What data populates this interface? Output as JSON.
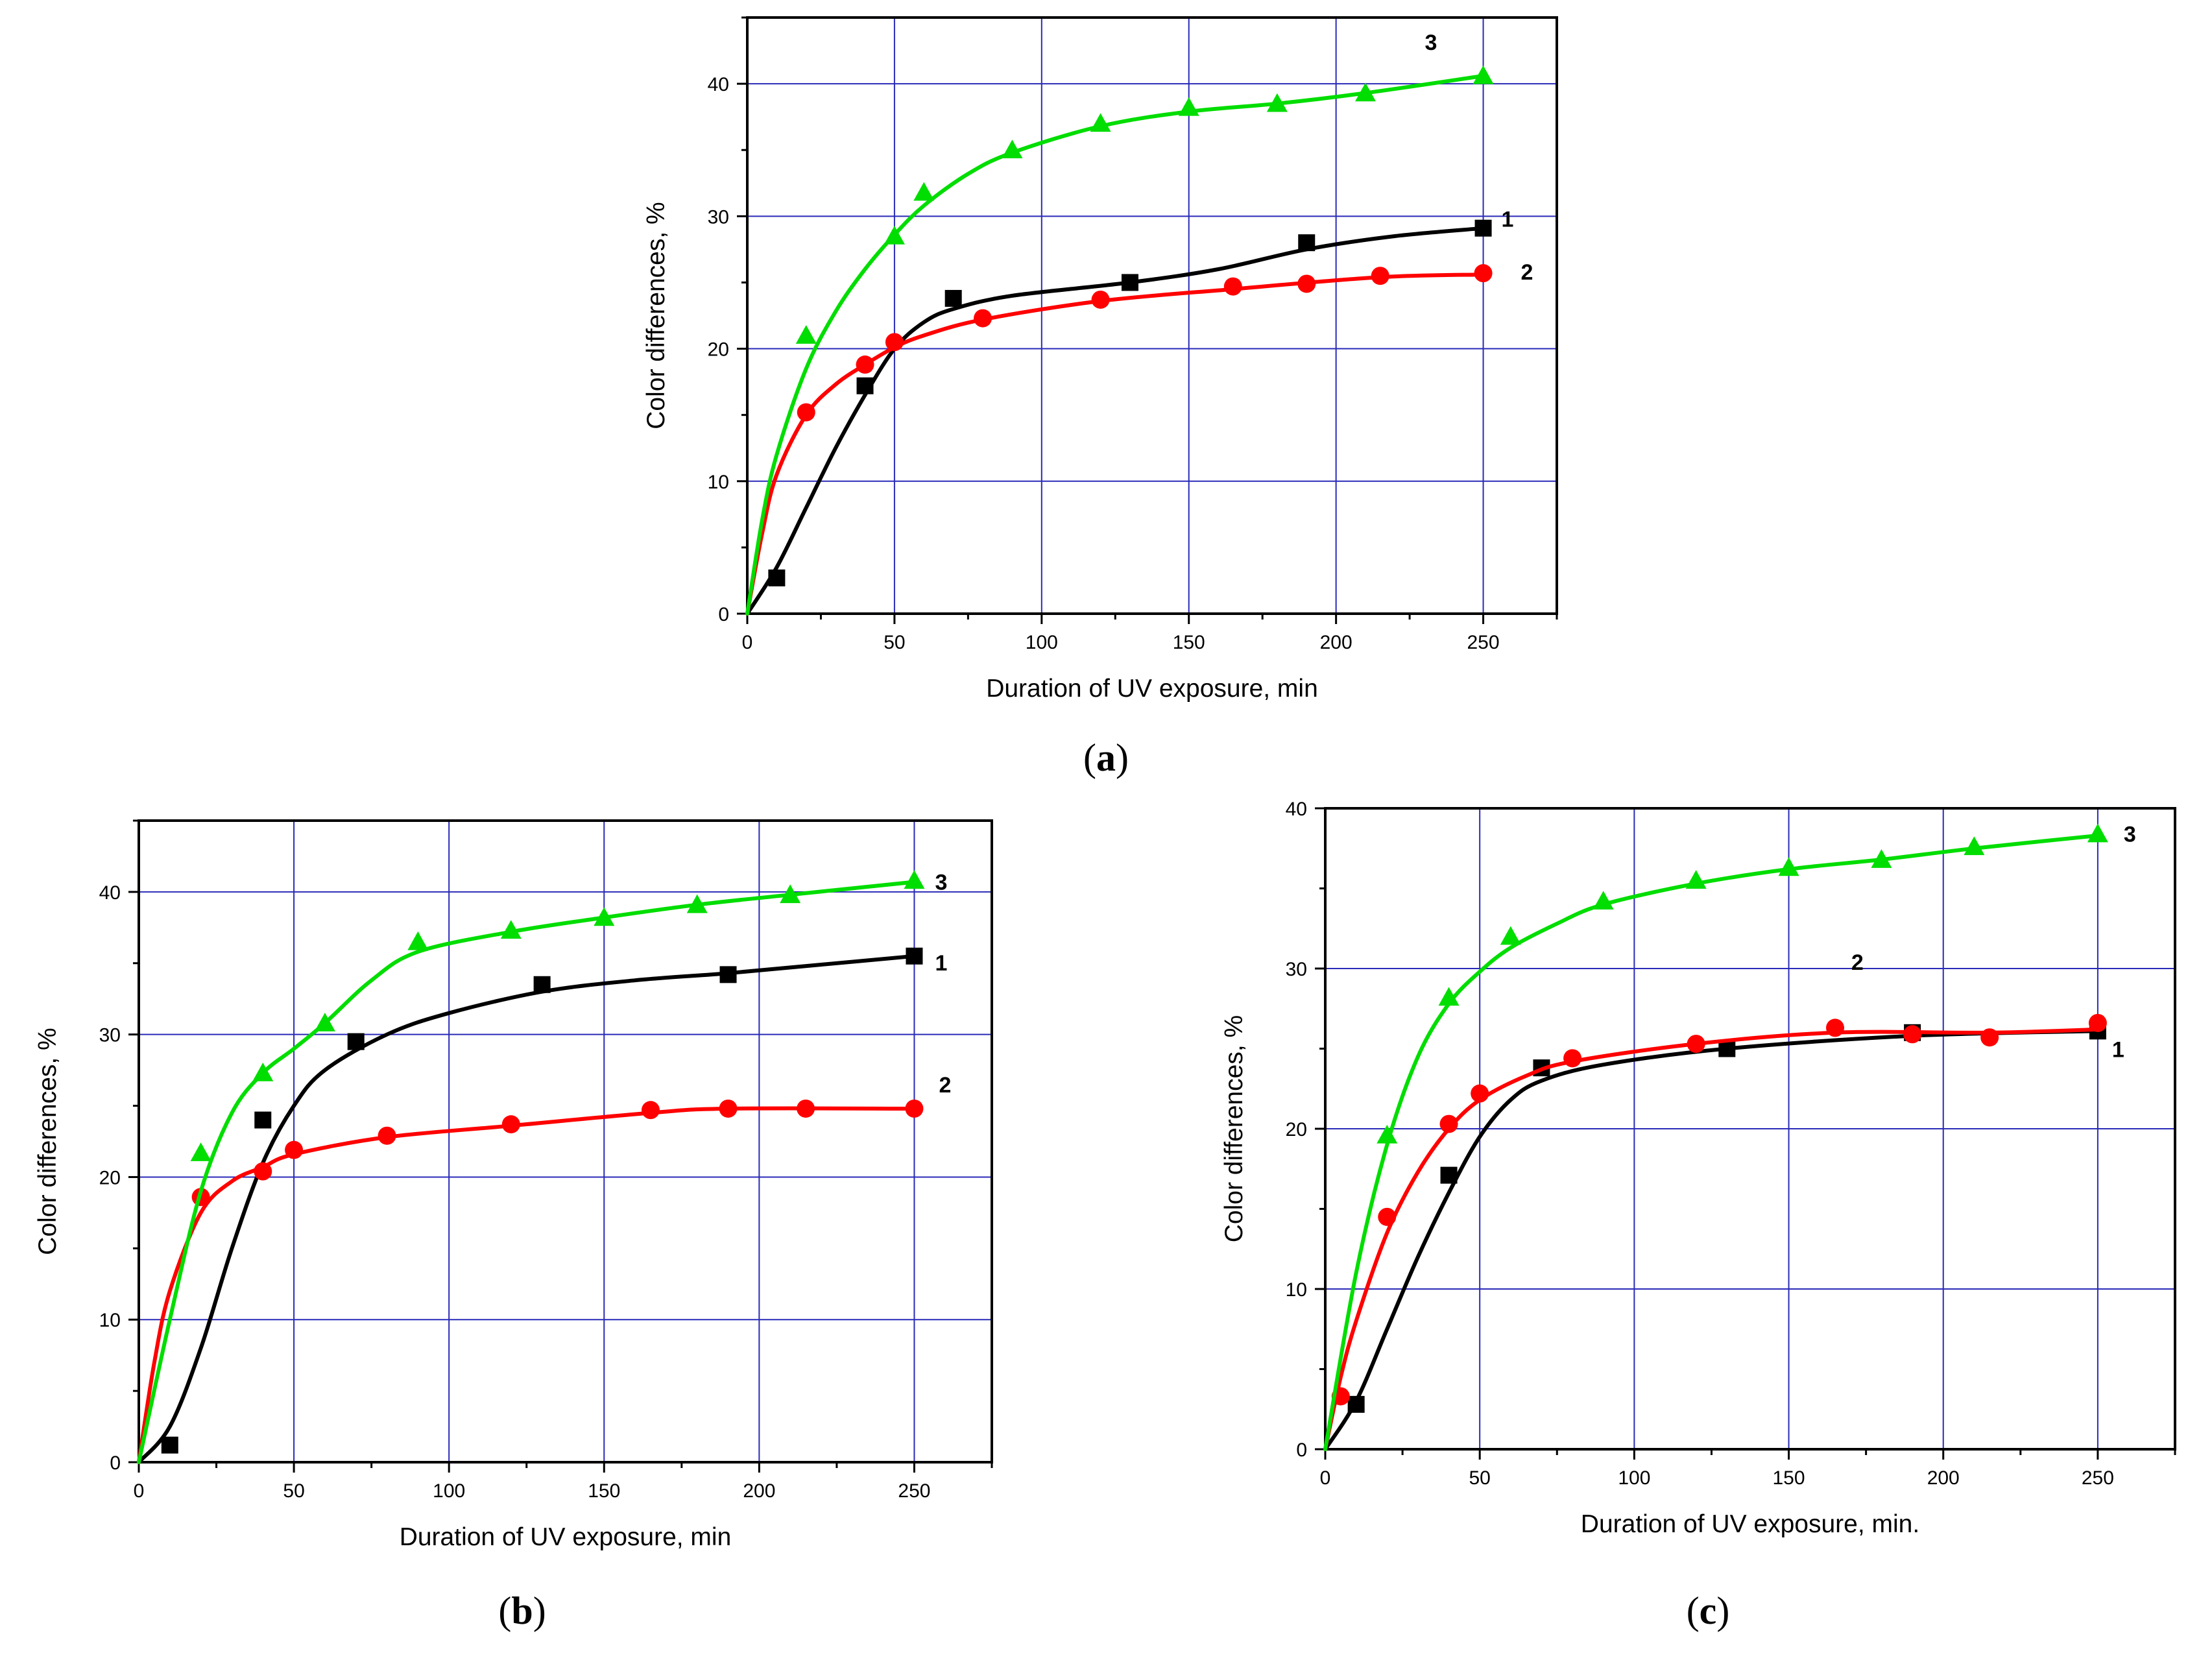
{
  "chart_data": [
    {
      "id": "a",
      "type": "line",
      "caption": "a",
      "xlabel": "Duration of UV exposure, min",
      "ylabel": "Color differences, %",
      "xlim": [
        0,
        275
      ],
      "ylim": [
        0,
        45
      ],
      "xticks": [
        0,
        50,
        100,
        150,
        200,
        250
      ],
      "yticks": [
        0,
        10,
        20,
        30,
        40
      ],
      "grid": true,
      "series": [
        {
          "name": "1",
          "color": "#000000",
          "marker": "square",
          "points": [
            [
              10,
              2.7
            ],
            [
              40,
              17.2
            ],
            [
              70,
              23.8
            ],
            [
              130,
              25.0
            ],
            [
              190,
              28.0
            ],
            [
              250,
              29.1
            ]
          ],
          "curve": [
            [
              0,
              0
            ],
            [
              10,
              3.5
            ],
            [
              20,
              8
            ],
            [
              30,
              12.5
            ],
            [
              40,
              16.5
            ],
            [
              50,
              20
            ],
            [
              60,
              22
            ],
            [
              70,
              23
            ],
            [
              90,
              24
            ],
            [
              130,
              25
            ],
            [
              160,
              26
            ],
            [
              190,
              27.5
            ],
            [
              220,
              28.5
            ],
            [
              250,
              29.1
            ]
          ]
        },
        {
          "name": "2",
          "color": "#ff0000",
          "marker": "circle",
          "points": [
            [
              20,
              15.2
            ],
            [
              40,
              18.8
            ],
            [
              50,
              20.5
            ],
            [
              80,
              22.3
            ],
            [
              120,
              23.7
            ],
            [
              165,
              24.7
            ],
            [
              190,
              24.9
            ],
            [
              215,
              25.5
            ],
            [
              250,
              25.7
            ]
          ],
          "curve": [
            [
              0,
              0
            ],
            [
              5,
              6
            ],
            [
              10,
              10.5
            ],
            [
              20,
              15
            ],
            [
              30,
              17.3
            ],
            [
              40,
              18.8
            ],
            [
              50,
              20.1
            ],
            [
              60,
              21
            ],
            [
              80,
              22.2
            ],
            [
              120,
              23.6
            ],
            [
              165,
              24.5
            ],
            [
              215,
              25.4
            ],
            [
              250,
              25.6
            ]
          ]
        },
        {
          "name": "3",
          "color": "#00dd00",
          "marker": "triangle",
          "points": [
            [
              20,
              21.0
            ],
            [
              50,
              28.5
            ],
            [
              60,
              31.8
            ],
            [
              90,
              35.0
            ],
            [
              120,
              37.0
            ],
            [
              150,
              38.2
            ],
            [
              180,
              38.5
            ],
            [
              210,
              39.3
            ],
            [
              250,
              40.6
            ]
          ],
          "curve": [
            [
              0,
              0
            ],
            [
              5,
              7
            ],
            [
              10,
              12
            ],
            [
              20,
              18.5
            ],
            [
              30,
              22.8
            ],
            [
              40,
              26
            ],
            [
              50,
              28.6
            ],
            [
              60,
              30.8
            ],
            [
              75,
              33.2
            ],
            [
              90,
              34.8
            ],
            [
              120,
              36.8
            ],
            [
              150,
              37.9
            ],
            [
              180,
              38.5
            ],
            [
              210,
              39.3
            ],
            [
              250,
              40.6
            ]
          ]
        }
      ]
    },
    {
      "id": "b",
      "type": "line",
      "caption": "b",
      "xlabel": "Duration of UV exposure, min",
      "ylabel": "Color differences, %",
      "xlim": [
        0,
        275
      ],
      "ylim": [
        0,
        45
      ],
      "xticks": [
        0,
        50,
        100,
        150,
        200,
        250
      ],
      "yticks": [
        0,
        10,
        20,
        30,
        40
      ],
      "grid": true,
      "series": [
        {
          "name": "1",
          "color": "#000000",
          "marker": "square",
          "points": [
            [
              10,
              1.2
            ],
            [
              40,
              24.0
            ],
            [
              70,
              29.5
            ],
            [
              130,
              33.5
            ],
            [
              190,
              34.2
            ],
            [
              250,
              35.5
            ]
          ],
          "curve": [
            [
              0,
              0
            ],
            [
              10,
              2.5
            ],
            [
              20,
              8
            ],
            [
              30,
              15
            ],
            [
              40,
              21
            ],
            [
              50,
              25
            ],
            [
              60,
              27.5
            ],
            [
              80,
              30
            ],
            [
              100,
              31.5
            ],
            [
              130,
              33
            ],
            [
              160,
              33.8
            ],
            [
              190,
              34.3
            ],
            [
              220,
              34.9
            ],
            [
              250,
              35.5
            ]
          ]
        },
        {
          "name": "2",
          "color": "#ff0000",
          "marker": "circle",
          "points": [
            [
              20,
              18.6
            ],
            [
              40,
              20.4
            ],
            [
              50,
              21.9
            ],
            [
              80,
              22.9
            ],
            [
              120,
              23.7
            ],
            [
              165,
              24.7
            ],
            [
              190,
              24.8
            ],
            [
              215,
              24.8
            ],
            [
              250,
              24.8
            ]
          ],
          "curve": [
            [
              0,
              0
            ],
            [
              5,
              7
            ],
            [
              10,
              12
            ],
            [
              20,
              17.5
            ],
            [
              30,
              19.7
            ],
            [
              40,
              20.7
            ],
            [
              50,
              21.6
            ],
            [
              80,
              22.8
            ],
            [
              120,
              23.6
            ],
            [
              165,
              24.5
            ],
            [
              190,
              24.8
            ],
            [
              250,
              24.8
            ]
          ]
        },
        {
          "name": "3",
          "color": "#00dd00",
          "marker": "triangle",
          "points": [
            [
              20,
              21.7
            ],
            [
              40,
              27.3
            ],
            [
              60,
              30.8
            ],
            [
              90,
              36.5
            ],
            [
              120,
              37.3
            ],
            [
              150,
              38.2
            ],
            [
              180,
              39.1
            ],
            [
              210,
              39.8
            ],
            [
              250,
              40.8
            ]
          ],
          "curve": [
            [
              0,
              0
            ],
            [
              10,
              10
            ],
            [
              20,
              19
            ],
            [
              30,
              24.5
            ],
            [
              40,
              27.3
            ],
            [
              50,
              29
            ],
            [
              60,
              30.8
            ],
            [
              75,
              33.8
            ],
            [
              90,
              35.8
            ],
            [
              120,
              37.2
            ],
            [
              150,
              38.2
            ],
            [
              180,
              39.1
            ],
            [
              210,
              39.8
            ],
            [
              250,
              40.7
            ]
          ]
        }
      ]
    },
    {
      "id": "c",
      "type": "line",
      "caption": "c",
      "xlabel": "Duration of UV exposure, min.",
      "ylabel": "Color differences, %",
      "xlim": [
        0,
        275
      ],
      "ylim": [
        0,
        40
      ],
      "xticks": [
        0,
        50,
        100,
        150,
        200,
        250
      ],
      "yticks": [
        0,
        10,
        20,
        30,
        40
      ],
      "grid": true,
      "series": [
        {
          "name": "1",
          "color": "#000000",
          "marker": "square",
          "points": [
            [
              10,
              2.8
            ],
            [
              40,
              17.1
            ],
            [
              70,
              23.8
            ],
            [
              130,
              25.0
            ],
            [
              190,
              26.0
            ],
            [
              250,
              26.1
            ]
          ],
          "curve": [
            [
              0,
              0
            ],
            [
              10,
              3
            ],
            [
              20,
              7.5
            ],
            [
              30,
              12
            ],
            [
              40,
              16
            ],
            [
              50,
              19.5
            ],
            [
              60,
              21.8
            ],
            [
              70,
              23
            ],
            [
              90,
              24
            ],
            [
              130,
              25
            ],
            [
              190,
              25.8
            ],
            [
              250,
              26.1
            ]
          ]
        },
        {
          "name": "2",
          "color": "#ff0000",
          "marker": "circle",
          "points": [
            [
              5,
              3.3
            ],
            [
              20,
              14.5
            ],
            [
              40,
              20.3
            ],
            [
              50,
              22.2
            ],
            [
              80,
              24.4
            ],
            [
              120,
              25.3
            ],
            [
              165,
              26.3
            ],
            [
              190,
              25.9
            ],
            [
              215,
              25.7
            ],
            [
              250,
              26.6
            ]
          ],
          "curve": [
            [
              0,
              0
            ],
            [
              5,
              4.5
            ],
            [
              10,
              8
            ],
            [
              20,
              13.5
            ],
            [
              30,
              17.3
            ],
            [
              40,
              20
            ],
            [
              50,
              21.8
            ],
            [
              65,
              23.3
            ],
            [
              80,
              24.2
            ],
            [
              120,
              25.3
            ],
            [
              165,
              26
            ],
            [
              215,
              26
            ],
            [
              250,
              26.2
            ]
          ]
        },
        {
          "name": "3",
          "color": "#00dd00",
          "marker": "triangle",
          "points": [
            [
              20,
              19.6
            ],
            [
              40,
              28.2
            ],
            [
              60,
              32.0
            ],
            [
              90,
              34.2
            ],
            [
              120,
              35.5
            ],
            [
              150,
              36.3
            ],
            [
              180,
              36.8
            ],
            [
              210,
              37.6
            ],
            [
              250,
              38.4
            ]
          ],
          "curve": [
            [
              0,
              0
            ],
            [
              10,
              11
            ],
            [
              20,
              19
            ],
            [
              30,
              24.5
            ],
            [
              40,
              27.8
            ],
            [
              50,
              29.8
            ],
            [
              60,
              31.3
            ],
            [
              75,
              32.8
            ],
            [
              90,
              34
            ],
            [
              120,
              35.3
            ],
            [
              150,
              36.2
            ],
            [
              180,
              36.8
            ],
            [
              210,
              37.5
            ],
            [
              250,
              38.3
            ]
          ]
        }
      ]
    }
  ]
}
